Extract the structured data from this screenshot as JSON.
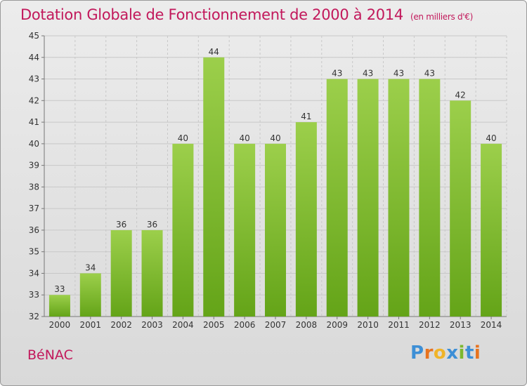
{
  "title": "Dotation Globale de Fonctionnement de 2000 à 2014",
  "subtitle": "(en milliers d'€)",
  "commune": "BéNAC",
  "logo": {
    "letters": [
      "P",
      "r",
      "o",
      "x",
      "i",
      "t",
      "i"
    ],
    "colors": [
      "#3d8fd6",
      "#e8731e",
      "#f0b429",
      "#3d8fd6",
      "#7cb82f",
      "#3d8fd6",
      "#e8731e"
    ]
  },
  "colors": {
    "bar_top": "#9ccf4b",
    "bar_bottom": "#64a418",
    "title": "#c2185b",
    "grid": "#c8c8c8"
  },
  "chart_data": {
    "type": "bar",
    "categories": [
      "2000",
      "2001",
      "2002",
      "2003",
      "2004",
      "2005",
      "2006",
      "2007",
      "2008",
      "2009",
      "2010",
      "2011",
      "2012",
      "2013",
      "2014"
    ],
    "values": [
      33,
      34,
      36,
      36,
      40,
      44,
      40,
      40,
      41,
      43,
      43,
      43,
      43,
      42,
      40
    ],
    "title": "Dotation Globale de Fonctionnement de 2000 à 2014",
    "subtitle": "(en milliers d'€)",
    "xlabel": "",
    "ylabel": "",
    "ylim": [
      32,
      45
    ],
    "yticks": [
      32,
      33,
      34,
      35,
      36,
      37,
      38,
      39,
      40,
      41,
      42,
      43,
      44,
      45
    ],
    "grid": true
  }
}
